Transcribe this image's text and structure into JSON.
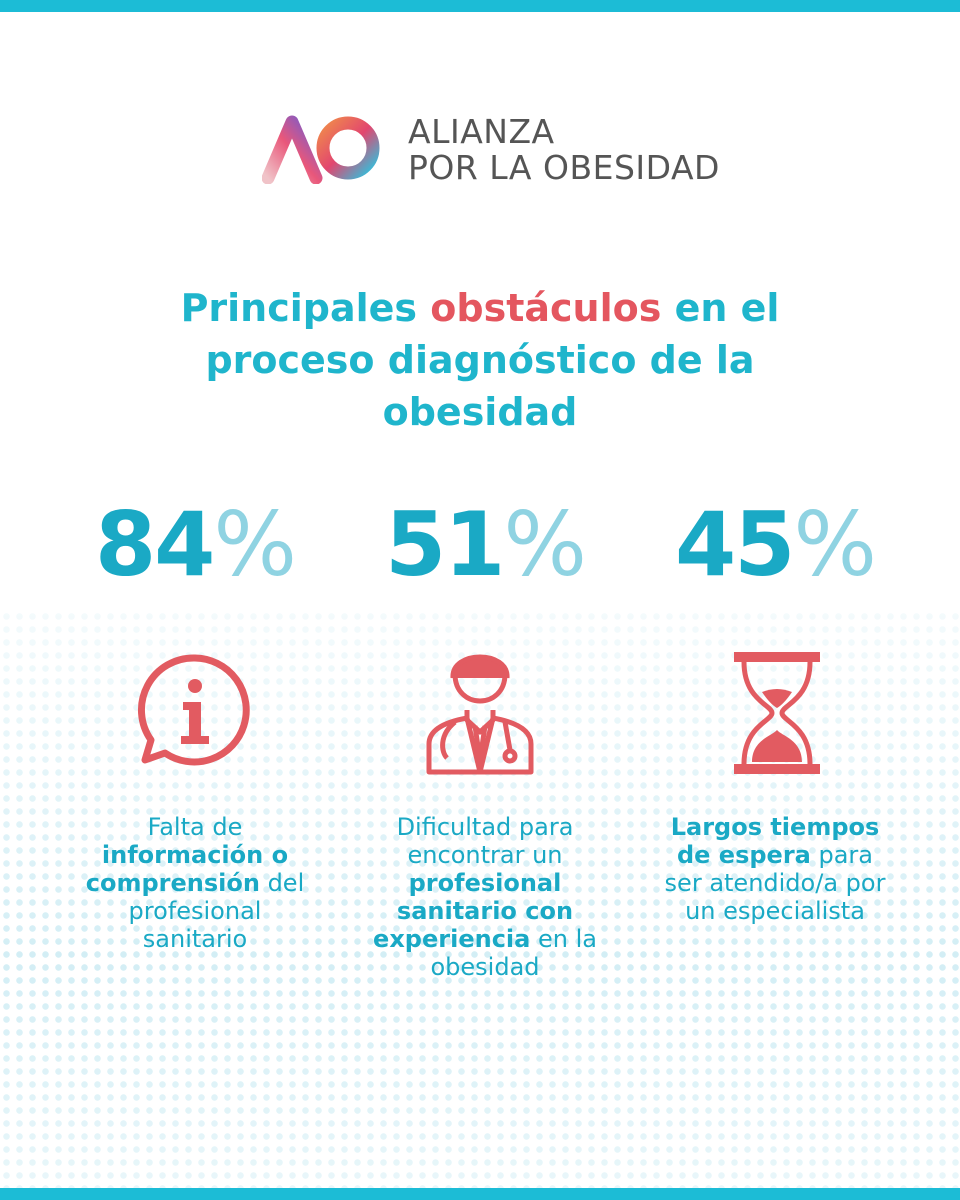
{
  "logo": {
    "line1": "ALIANZA",
    "line2": "POR LA OBESIDAD"
  },
  "title": [
    {
      "text": "Principales ",
      "accent": false
    },
    {
      "text": "obstáculos",
      "accent": true
    },
    {
      "text": " en el proceso diagnóstico de la obesidad",
      "accent": false
    }
  ],
  "stats": [
    {
      "value": 84,
      "unit": "%",
      "description": [
        {
          "text": "Falta de ",
          "bold": false
        },
        {
          "text": "información o comprensión",
          "bold": true
        },
        {
          "text": " del profesional sanitario",
          "bold": false
        }
      ]
    },
    {
      "value": 51,
      "unit": "%",
      "description": [
        {
          "text": "Dificultad para encontrar un ",
          "bold": false
        },
        {
          "text": "profesional sanitario con experiencia",
          "bold": true
        },
        {
          "text": " en la obesidad",
          "bold": false
        }
      ]
    },
    {
      "value": 45,
      "unit": "%",
      "description": [
        {
          "text": "Largos tiempos de espera",
          "bold": true
        },
        {
          "text": " para ser atendido/a por un especialista",
          "bold": false
        }
      ]
    }
  ]
}
